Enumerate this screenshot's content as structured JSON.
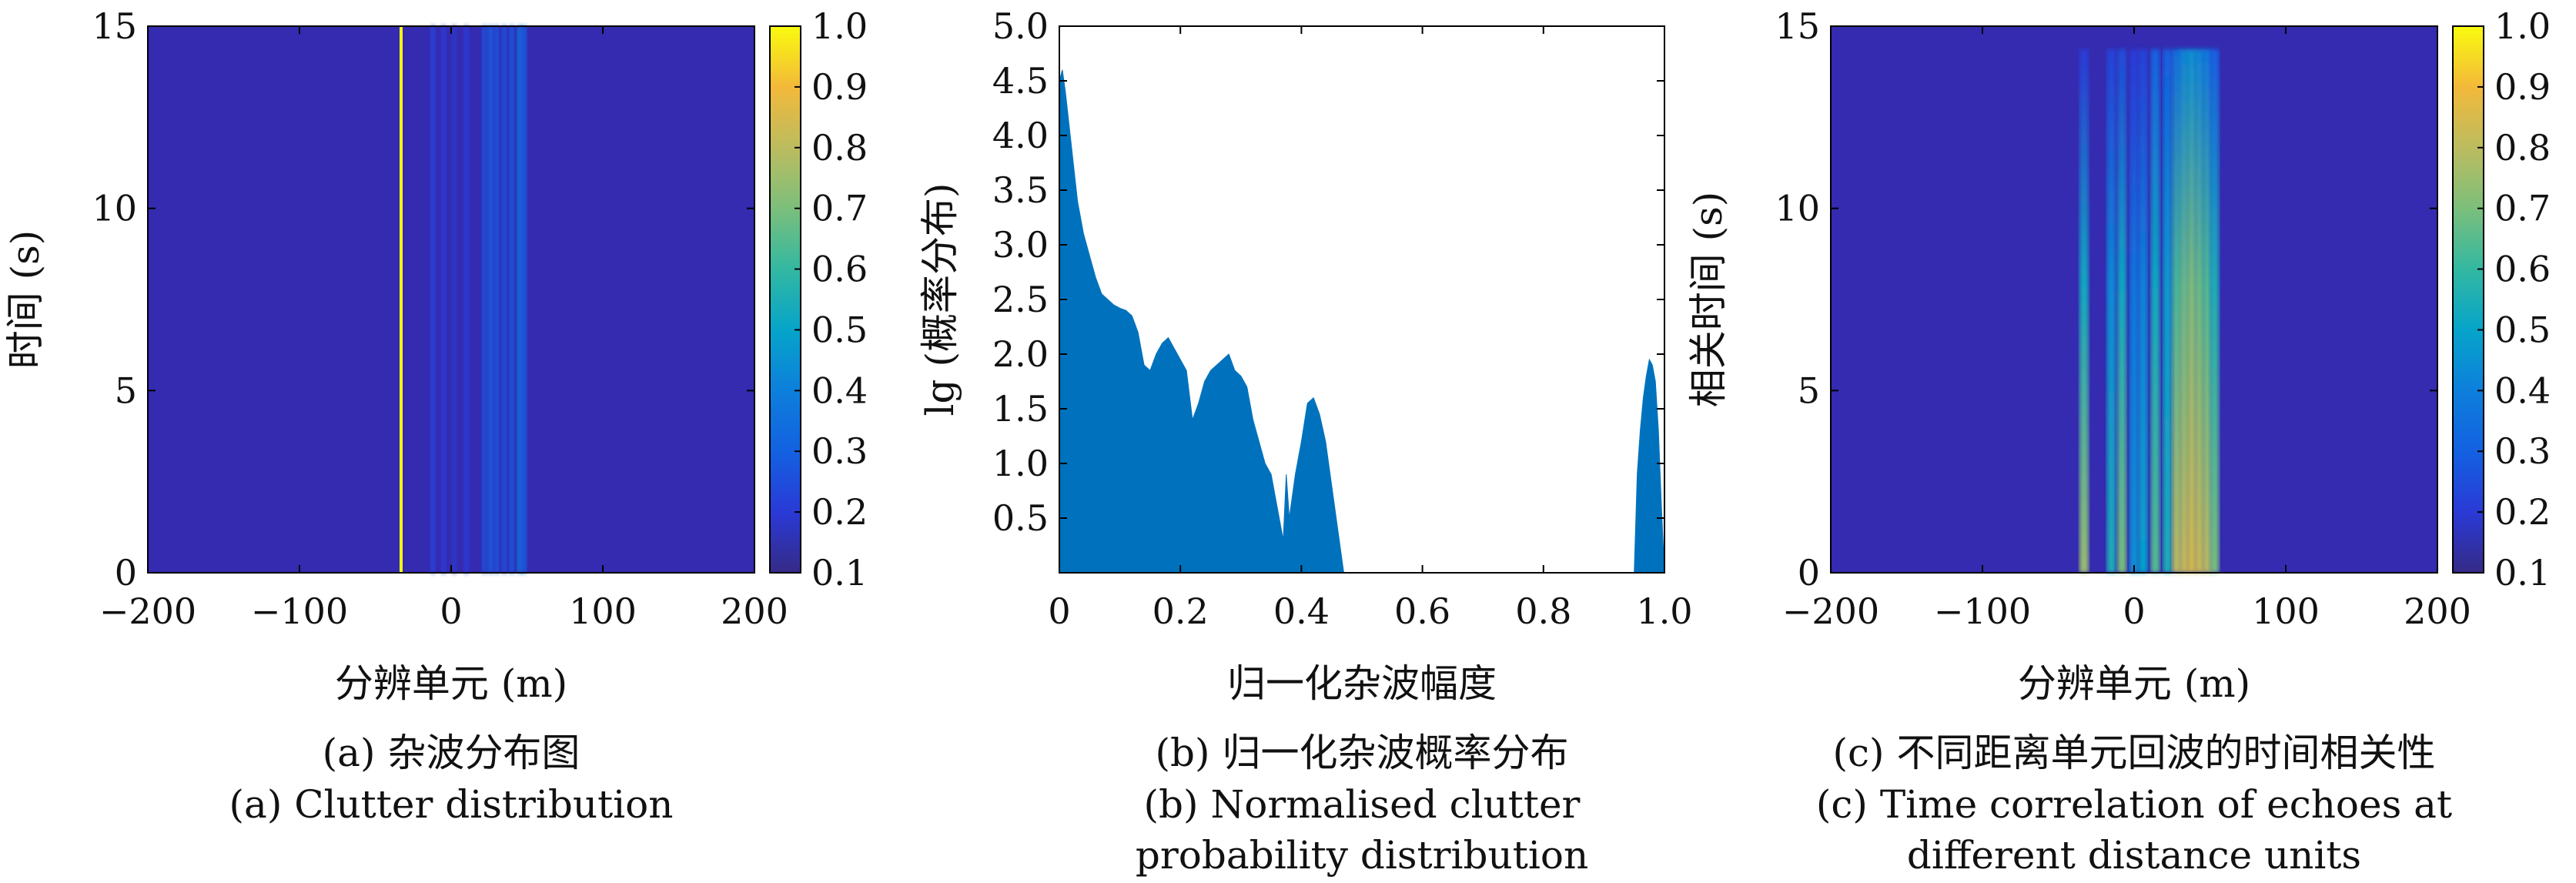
{
  "chart_data": [
    {
      "type": "heatmap",
      "id": "a",
      "xlabel": "分辨单元 (m)",
      "ylabel": "时间 (s)",
      "xlim": [
        -200,
        200
      ],
      "ylim": [
        0,
        15
      ],
      "xticks": [
        "−200",
        "−100",
        "0",
        "100",
        "200"
      ],
      "xtick_values": [
        -200,
        -100,
        0,
        100,
        200
      ],
      "yticks": [
        "0",
        "5",
        "10",
        "15"
      ],
      "ytick_values": [
        0,
        5,
        10,
        15
      ],
      "colorbar": {
        "min": 0.1,
        "max": 1.0,
        "ticks": [
          "0.1",
          "0.2",
          "0.3",
          "0.4",
          "0.5",
          "0.6",
          "0.7",
          "0.8",
          "0.9",
          "1.0"
        ],
        "tick_values": [
          0.1,
          0.2,
          0.3,
          0.4,
          0.5,
          0.6,
          0.7,
          0.8,
          0.9,
          1.0
        ]
      },
      "background_value": 0.13,
      "columns": [
        {
          "x": -33,
          "value": 1.0
        },
        {
          "x": -12,
          "value": 0.22
        },
        {
          "x": -5,
          "value": 0.2
        },
        {
          "x": 2,
          "value": 0.18
        },
        {
          "x": 10,
          "value": 0.2
        },
        {
          "x": 22,
          "value": 0.26
        },
        {
          "x": 26,
          "value": 0.3
        },
        {
          "x": 30,
          "value": 0.27
        },
        {
          "x": 35,
          "value": 0.26
        },
        {
          "x": 40,
          "value": 0.28
        },
        {
          "x": 45,
          "value": 0.35
        },
        {
          "x": 48,
          "value": 0.3
        }
      ],
      "caption_lines": [
        "(a) 杂波分布图",
        "(a) Clutter distribution"
      ]
    },
    {
      "type": "area",
      "id": "b",
      "xlabel": "归一化杂波幅度",
      "ylabel": "lg (概率分布)",
      "xlim": [
        0,
        1.0
      ],
      "ylim": [
        0,
        5.0
      ],
      "xticks": [
        "0",
        "0.2",
        "0.4",
        "0.6",
        "0.8",
        "1.0"
      ],
      "xtick_values": [
        0,
        0.2,
        0.4,
        0.6,
        0.8,
        1.0
      ],
      "yticks": [
        "0.5",
        "1.0",
        "1.5",
        "2.0",
        "2.5",
        "3.0",
        "3.5",
        "4.0",
        "4.5",
        "5.0"
      ],
      "ytick_values": [
        0.5,
        1.0,
        1.5,
        2.0,
        2.5,
        3.0,
        3.5,
        4.0,
        4.5,
        5.0
      ],
      "fill_color": "#0072bd",
      "segments": [
        {
          "x": [
            0.0,
            0.005,
            0.01,
            0.02,
            0.03,
            0.04,
            0.05,
            0.06,
            0.07,
            0.08,
            0.09,
            0.1,
            0.11,
            0.12,
            0.13,
            0.14,
            0.15,
            0.16,
            0.17,
            0.18,
            0.19,
            0.2,
            0.21,
            0.22,
            0.23,
            0.24,
            0.25,
            0.26,
            0.27,
            0.28,
            0.29,
            0.3,
            0.31,
            0.32,
            0.33,
            0.34,
            0.35,
            0.36,
            0.37,
            0.375,
            0.38,
            0.39,
            0.4,
            0.41,
            0.42,
            0.43,
            0.44,
            0.45,
            0.46,
            0.47
          ],
          "y": [
            4.5,
            4.6,
            4.4,
            3.9,
            3.4,
            3.1,
            2.9,
            2.7,
            2.55,
            2.5,
            2.45,
            2.42,
            2.4,
            2.35,
            2.2,
            1.9,
            1.85,
            2.0,
            2.1,
            2.15,
            2.05,
            1.95,
            1.85,
            1.4,
            1.55,
            1.75,
            1.85,
            1.9,
            1.95,
            2.0,
            1.85,
            1.8,
            1.7,
            1.4,
            1.2,
            1.0,
            0.9,
            0.6,
            0.3,
            0.9,
            0.5,
            0.9,
            1.2,
            1.55,
            1.6,
            1.45,
            1.2,
            0.8,
            0.4,
            0.0
          ]
        },
        {
          "x": [
            0.95,
            0.955,
            0.96,
            0.965,
            0.97,
            0.975,
            0.98,
            0.985,
            0.99,
            0.995,
            1.0
          ],
          "y": [
            0.0,
            0.9,
            1.3,
            1.6,
            1.8,
            1.95,
            1.9,
            1.75,
            1.3,
            0.6,
            0.0
          ]
        }
      ],
      "caption_lines": [
        "(b) 归一化杂波概率分布",
        "(b) Normalised clutter",
        "probability distribution"
      ]
    },
    {
      "type": "heatmap",
      "id": "c",
      "xlabel": "分辨单元 (m)",
      "ylabel": "相关时间 (s)",
      "xlim": [
        -200,
        200
      ],
      "ylim": [
        0,
        15
      ],
      "xticks": [
        "−200",
        "−100",
        "0",
        "100",
        "200"
      ],
      "xtick_values": [
        -200,
        -100,
        0,
        100,
        200
      ],
      "yticks": [
        "0",
        "5",
        "10",
        "15"
      ],
      "ytick_values": [
        0,
        5,
        10,
        15
      ],
      "colorbar": {
        "min": 0.1,
        "max": 1.0,
        "ticks": [
          "0.1",
          "0.2",
          "0.3",
          "0.4",
          "0.5",
          "0.6",
          "0.7",
          "0.8",
          "0.9",
          "1.0"
        ],
        "tick_values": [
          0.1,
          0.2,
          0.3,
          0.4,
          0.5,
          0.6,
          0.7,
          0.8,
          0.9,
          1.0
        ]
      },
      "background_value": 0.13,
      "columns": [
        {
          "x": -33,
          "bottom": 0.75,
          "top": 0.2
        },
        {
          "x": -15,
          "bottom": 0.55,
          "top": 0.22
        },
        {
          "x": -8,
          "bottom": 0.7,
          "top": 0.24
        },
        {
          "x": 0,
          "bottom": 0.45,
          "top": 0.2
        },
        {
          "x": 6,
          "bottom": 0.5,
          "top": 0.22
        },
        {
          "x": 14,
          "bottom": 0.65,
          "top": 0.3
        },
        {
          "x": 22,
          "bottom": 0.55,
          "top": 0.3
        },
        {
          "x": 28,
          "bottom": 0.8,
          "top": 0.35
        },
        {
          "x": 33,
          "bottom": 0.82,
          "top": 0.42
        },
        {
          "x": 38,
          "bottom": 0.85,
          "top": 0.45
        },
        {
          "x": 43,
          "bottom": 0.83,
          "top": 0.42
        },
        {
          "x": 48,
          "bottom": 0.8,
          "top": 0.38
        },
        {
          "x": 53,
          "bottom": 0.7,
          "top": 0.3
        }
      ],
      "caption_lines": [
        "(c) 不同距离单元回波的时间相关性",
        "(c) Time correlation of echoes at",
        "different distance units"
      ]
    }
  ]
}
